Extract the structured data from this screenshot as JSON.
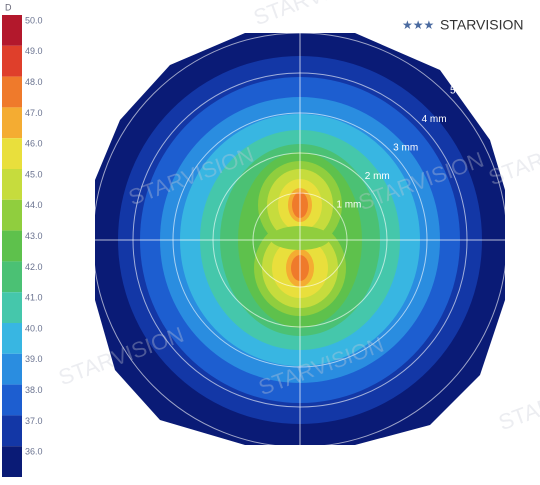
{
  "scale": {
    "unit": "D",
    "levels": [
      {
        "label": "50.0",
        "color": "#b3182c"
      },
      {
        "label": "49.0",
        "color": "#df3f2b"
      },
      {
        "label": "48.0",
        "color": "#ef7a2b"
      },
      {
        "label": "47.0",
        "color": "#f4ac32"
      },
      {
        "label": "46.0",
        "color": "#e9df3c"
      },
      {
        "label": "45.0",
        "color": "#c6dc3d"
      },
      {
        "label": "44.0",
        "color": "#90ce3e"
      },
      {
        "label": "43.0",
        "color": "#5ec14c"
      },
      {
        "label": "42.0",
        "color": "#4bc174"
      },
      {
        "label": "41.0",
        "color": "#45c7ab"
      },
      {
        "label": "40.0",
        "color": "#38b6e2"
      },
      {
        "label": "39.0",
        "color": "#2a8de0"
      },
      {
        "label": "38.0",
        "color": "#1d5ed0"
      },
      {
        "label": "37.0",
        "color": "#1337a6"
      },
      {
        "label": "36.0",
        "color": "#0a1b76"
      }
    ]
  },
  "rings": [
    {
      "label": "1 mm"
    },
    {
      "label": "2 mm"
    },
    {
      "label": "3 mm"
    },
    {
      "label": "4 mm"
    },
    {
      "label": "5"
    }
  ],
  "logo": "STARVISION",
  "watermark": "STARVISION"
}
